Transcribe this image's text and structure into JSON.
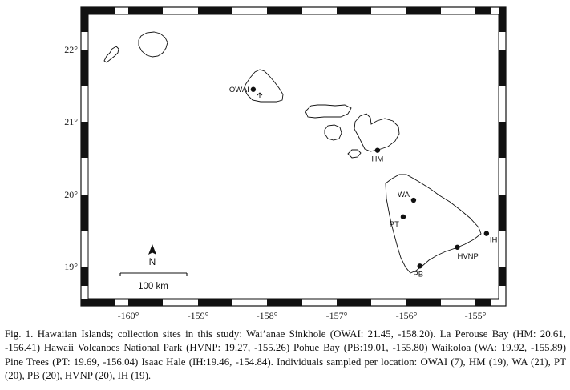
{
  "map": {
    "x_ticks": [
      "-160°",
      "-159°",
      "-158°",
      "-157°",
      "-156°",
      "-155°"
    ],
    "y_ticks": [
      "22°",
      "21°",
      "20°",
      "19°"
    ],
    "north_label": "N",
    "scale_label": "100 km",
    "sites": [
      {
        "code": "OWAI",
        "lat": 21.45,
        "lon": -158.2
      },
      {
        "code": "HM",
        "lat": 20.61,
        "lon": -156.41
      },
      {
        "code": "WA",
        "lat": 19.92,
        "lon": -155.89
      },
      {
        "code": "PT",
        "lat": 19.69,
        "lon": -156.04
      },
      {
        "code": "IH",
        "lat": 19.46,
        "lon": -154.84
      },
      {
        "code": "HVNP",
        "lat": 19.27,
        "lon": -155.26
      },
      {
        "code": "PB",
        "lat": 19.01,
        "lon": -155.8
      }
    ]
  },
  "caption": "Fig. 1. Hawaiian Islands; collection sites in this study: Wai’anae Sinkhole (OWAI: 21.45, -158.20). La Perouse Bay (HM: 20.61, -156.41) Hawaii Volcanoes National Park (HVNP: 19.27, -155.26) Pohue Bay (PB:19.01, -155.80) Waikoloa (WA: 19.92, -155.89) Pine Trees (PT: 19.69, -156.04) Isaac Hale (IH:19.46, -154.84). Individuals sampled per location: OWAI (7), HM (19), WA (21), PT (20), PB (20), HVNP (20), IH (19)."
}
